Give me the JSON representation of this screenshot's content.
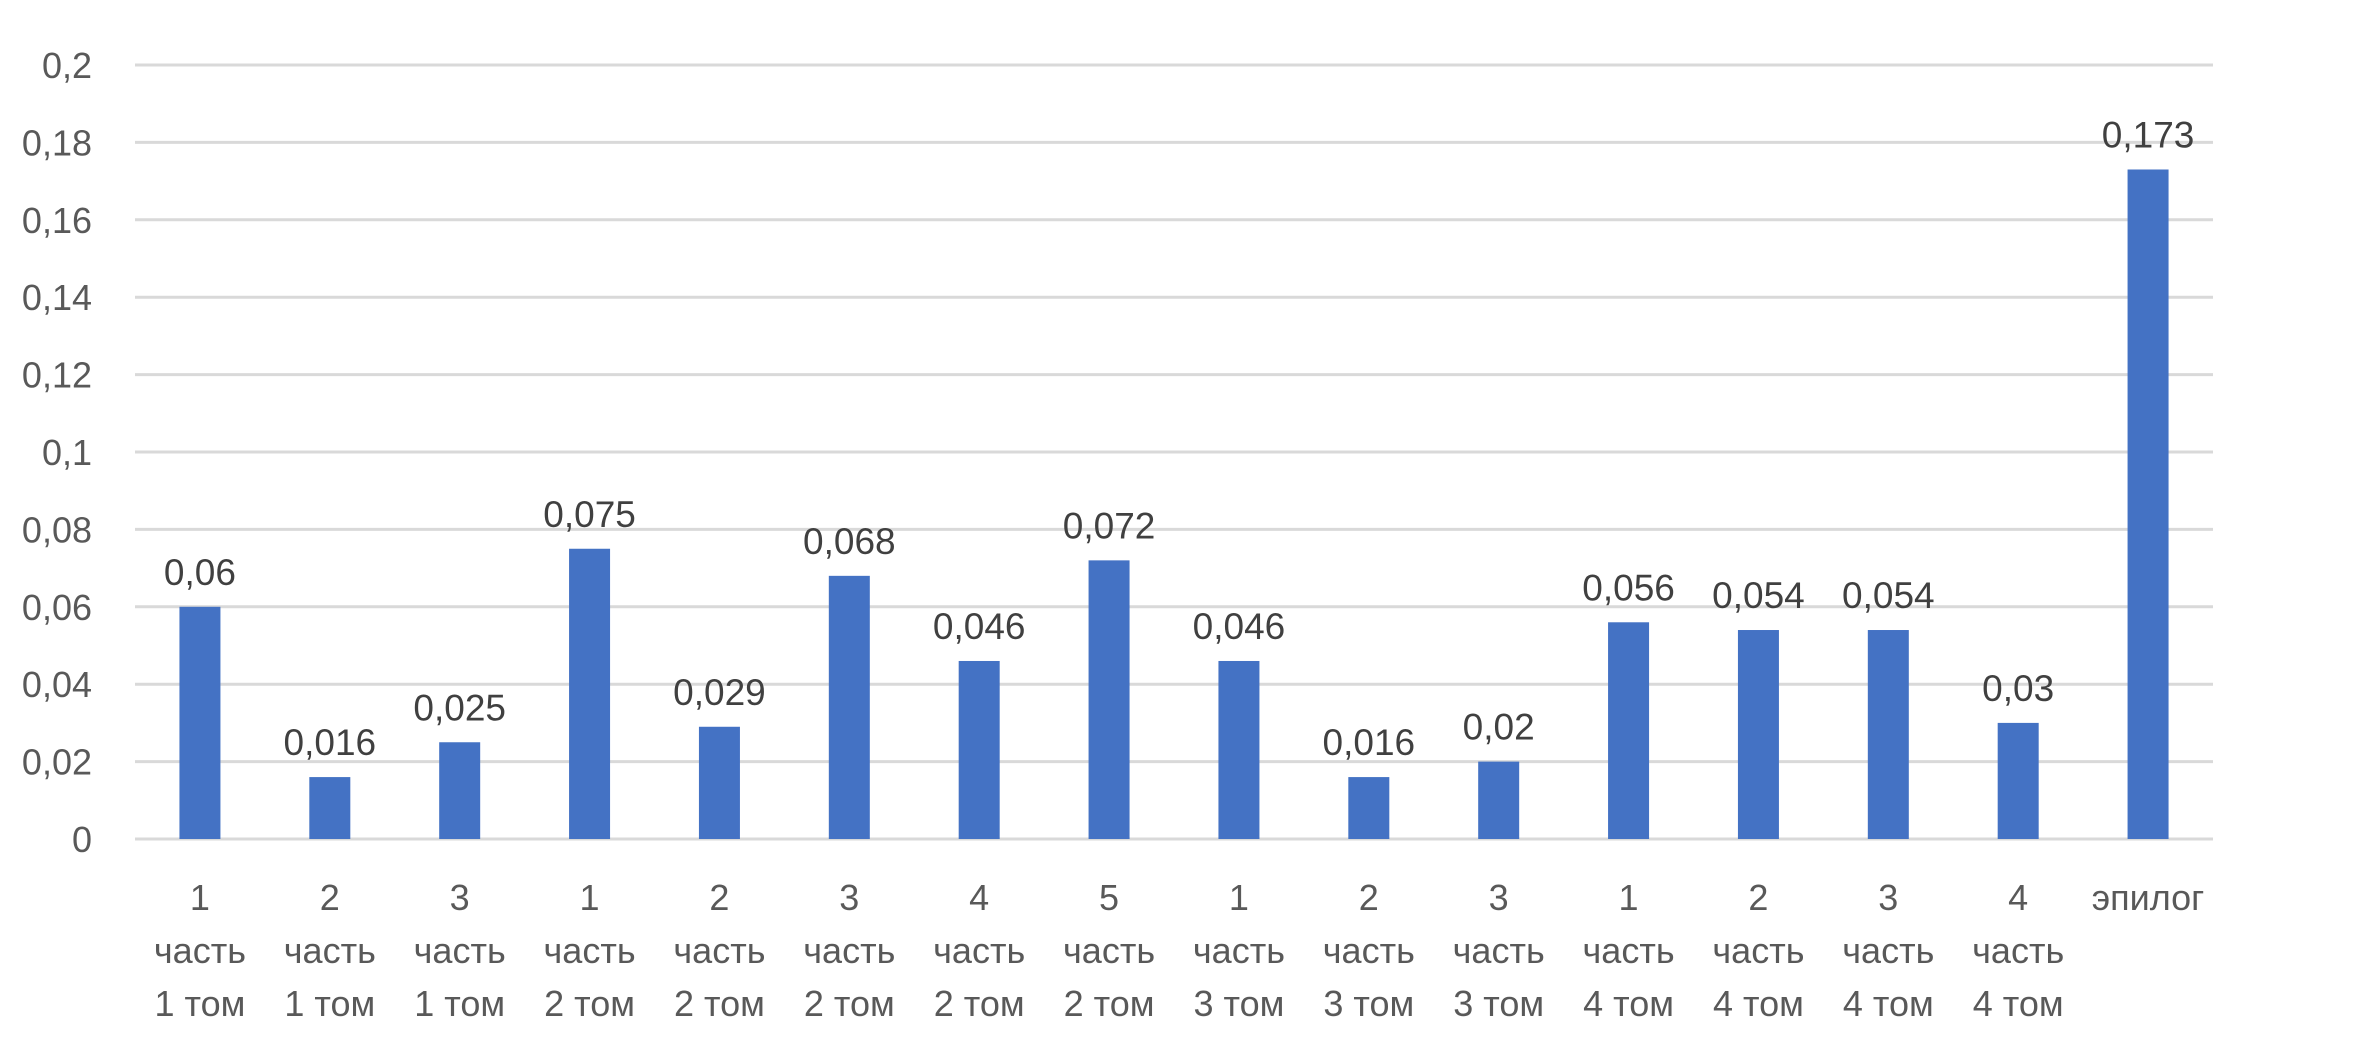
{
  "chart_data": {
    "type": "bar",
    "categories": [
      [
        "1",
        "часть",
        "1 том"
      ],
      [
        "2",
        "часть",
        "1 том"
      ],
      [
        "3",
        "часть",
        "1 том"
      ],
      [
        "1",
        "часть",
        "2 том"
      ],
      [
        "2",
        "часть",
        "2 том"
      ],
      [
        "3",
        "часть",
        "2 том"
      ],
      [
        "4",
        "часть",
        "2 том"
      ],
      [
        "5",
        "часть",
        "2 том"
      ],
      [
        "1",
        "часть",
        "3 том"
      ],
      [
        "2",
        "часть",
        "3 том"
      ],
      [
        "3",
        "часть",
        "3 том"
      ],
      [
        "1",
        "часть",
        "4 том"
      ],
      [
        "2",
        "часть",
        "4 том"
      ],
      [
        "3",
        "часть",
        "4 том"
      ],
      [
        "4",
        "часть",
        "4 том"
      ],
      [
        "эпилог"
      ]
    ],
    "values": [
      0.06,
      0.016,
      0.025,
      0.075,
      0.029,
      0.068,
      0.046,
      0.072,
      0.046,
      0.016,
      0.02,
      0.056,
      0.054,
      0.054,
      0.03,
      0.173
    ],
    "data_labels": [
      "0,06",
      "0,016",
      "0,025",
      "0,075",
      "0,029",
      "0,068",
      "0,046",
      "0,072",
      "0,046",
      "0,016",
      "0,02",
      "0,056",
      "0,054",
      "0,054",
      "0,03",
      "0,173"
    ],
    "yticks": [
      0,
      0.02,
      0.04,
      0.06,
      0.08,
      0.1,
      0.12,
      0.14,
      0.16,
      0.18,
      0.2
    ],
    "ytick_labels": [
      "0",
      "0,02",
      "0,04",
      "0,06",
      "0,08",
      "0,1",
      "0,12",
      "0,14",
      "0,16",
      "0,18",
      "0,2"
    ],
    "ylim": [
      0,
      0.2
    ],
    "grid": true,
    "legend": "none",
    "bar_color": "#4472c4",
    "title": "",
    "xlabel": "",
    "ylabel": ""
  }
}
